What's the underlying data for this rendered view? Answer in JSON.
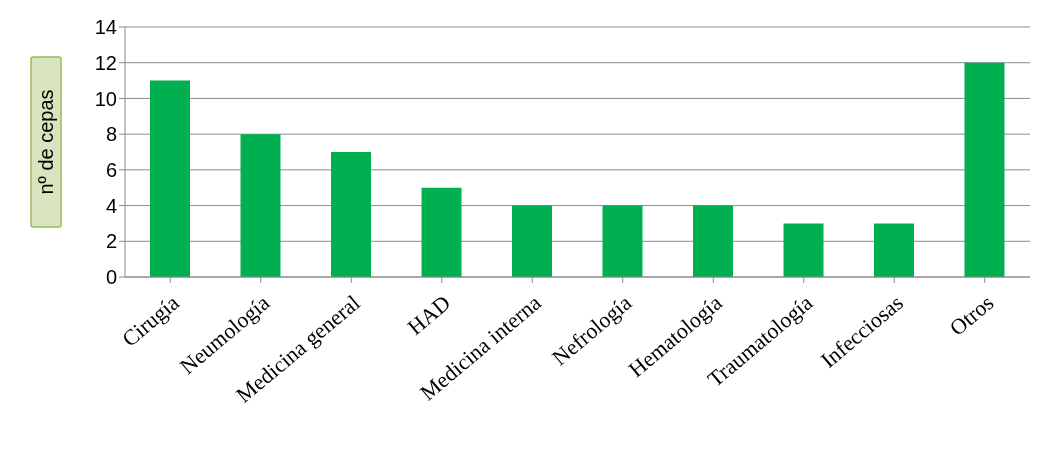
{
  "chart_data": {
    "type": "bar",
    "ylabel": "nº de cepas",
    "categories": [
      "Cirugía",
      "Neumología",
      "Medicina general",
      "HAD",
      "Medicina interna",
      "Nefrología",
      "Hematología",
      "Traumatología",
      "Infecciosas",
      "Otros"
    ],
    "values": [
      11,
      8,
      7,
      5,
      4,
      4,
      4,
      3,
      3,
      12
    ],
    "color": "#00b050",
    "ylim": [
      0,
      14
    ],
    "yticks": [
      0,
      2,
      4,
      6,
      8,
      10,
      12,
      14
    ],
    "grid": "y",
    "legend": false
  }
}
